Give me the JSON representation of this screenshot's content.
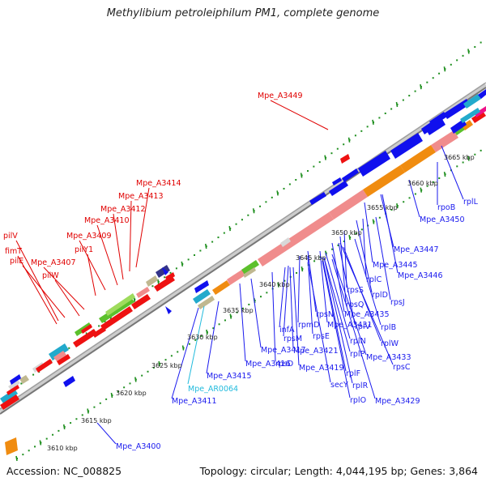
{
  "header": {
    "title": "Methylibium petroleiphilum PM1, complete genome"
  },
  "footer": {
    "accession": "Accession: NC_008825",
    "summary": "Topology: circular; Length: 4,044,195 bp; Genes: 3,864"
  },
  "colors": {
    "backbone": "#8a8a8a",
    "tick": "#1f8f1f",
    "label_red": "#e00000",
    "label_blue": "#1a1aee",
    "label_cyan": "#22bbdd",
    "cds_blue": "#1010ee",
    "rna_red": "#ee1111",
    "ribosomal": "#f08c8c",
    "operon_orange": "#f08c10",
    "green": "#5cc02c"
  },
  "scale_labels": [
    "3610 kbp",
    "3615 kbp",
    "3620 kbp",
    "3625 kbp",
    "3630 kbp",
    "3635 kbp",
    "3640 kbp",
    "3645 kbp",
    "3650 kbp",
    "3655 kbp",
    "3660 kbp",
    "3665 kbp"
  ],
  "genes": {
    "upper_red": [
      "Mpe_A3449",
      "Mpe_A3414",
      "Mpe_A3413",
      "Mpe_A3412",
      "Mpe_A3410",
      "Mpe_A3409",
      "pilY1",
      "Mpe_A3407",
      "pilW",
      "pilV",
      "fimT",
      "pilE"
    ],
    "lower_blue": [
      "rplL",
      "rpoB",
      "Mpe_A3450",
      "Mpe_A3447",
      "Mpe_A3445",
      "Mpe_A3446",
      "rplC",
      "rplD",
      "rpsJ",
      "rpsS",
      "rpsQ",
      "rplB",
      "rplV",
      "rpsN",
      "rpmD",
      "Mpe_A3435",
      "Mpe_A3431",
      "rplW",
      "infA",
      "rpsM",
      "rpsE",
      "rplN",
      "rplP",
      "Mpe_A3433",
      "Mpe_A3417",
      "Mpe_A3421",
      "rpsC",
      "Mpe_A3416",
      "rpsD",
      "Mpe_A3419",
      "rplF",
      "rplR",
      "rplO",
      "Mpe_A3415",
      "secY",
      "Mpe_A3429",
      "Mpe_A3411",
      "Mpe_A3400"
    ],
    "lower_cyan": [
      "Mpe_AR0064"
    ]
  }
}
